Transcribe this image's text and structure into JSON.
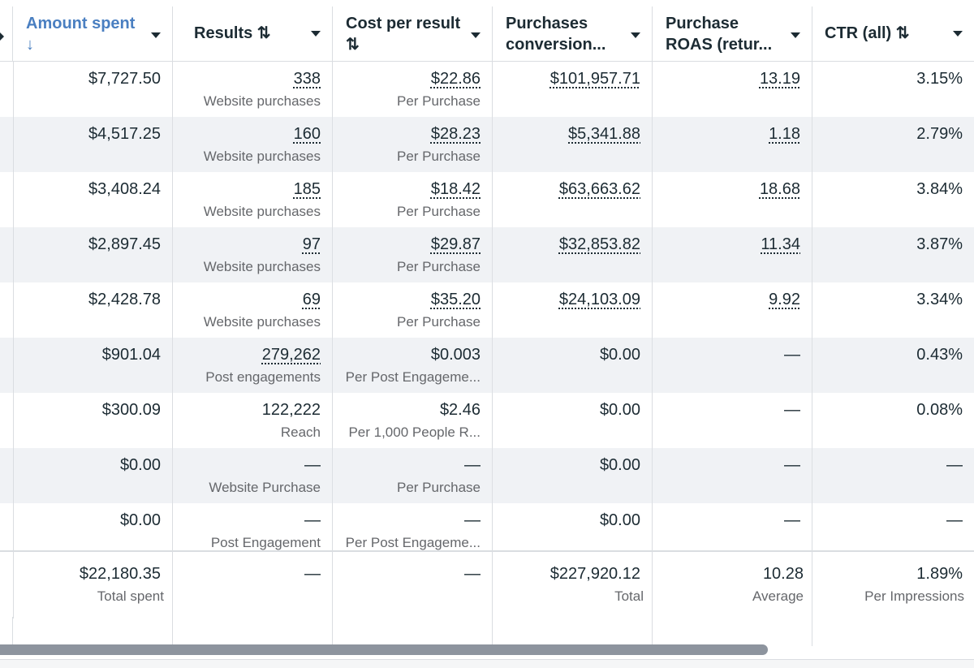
{
  "header": {
    "columns": [
      {
        "label": "Amount spent",
        "sort_glyph": "↓",
        "sorted": true
      },
      {
        "label": "Results ⇅",
        "sort_glyph": "",
        "sorted": false
      },
      {
        "label": "Cost per result",
        "sort_glyph": "⇅",
        "sorted": false
      },
      {
        "label": "Purchases",
        "label2": "conversion...",
        "sorted": false
      },
      {
        "label": "Purchase",
        "label2": "ROAS (retur...",
        "sorted": false
      },
      {
        "label": "CTR (all) ⇅",
        "sorted": false
      }
    ]
  },
  "rows": [
    {
      "amount": "$7,727.50",
      "results": "338",
      "results_sub": "Website purchases",
      "cpr": "$22.86",
      "cpr_sub": "Per Purchase",
      "conv": "$101,957.71",
      "roas": "13.19",
      "ctr": "3.15%"
    },
    {
      "amount": "$4,517.25",
      "results": "160",
      "results_sub": "Website purchases",
      "cpr": "$28.23",
      "cpr_sub": "Per Purchase",
      "conv": "$5,341.88",
      "roas": "1.18",
      "ctr": "2.79%"
    },
    {
      "amount": "$3,408.24",
      "results": "185",
      "results_sub": "Website purchases",
      "cpr": "$18.42",
      "cpr_sub": "Per Purchase",
      "conv": "$63,663.62",
      "roas": "18.68",
      "ctr": "3.84%"
    },
    {
      "amount": "$2,897.45",
      "results": "97",
      "results_sub": "Website purchases",
      "cpr": "$29.87",
      "cpr_sub": "Per Purchase",
      "conv": "$32,853.82",
      "roas": "11.34",
      "ctr": "3.87%"
    },
    {
      "amount": "$2,428.78",
      "results": "69",
      "results_sub": "Website purchases",
      "cpr": "$35.20",
      "cpr_sub": "Per Purchase",
      "conv": "$24,103.09",
      "roas": "9.92",
      "ctr": "3.34%"
    },
    {
      "amount": "$901.04",
      "results": "279,262",
      "results_sub": "Post engagements",
      "cpr": "$0.003",
      "cpr_sub": "Per Post Engageme...",
      "conv": "$0.00",
      "roas": "—",
      "ctr": "0.43%"
    },
    {
      "amount": "$300.09",
      "results": "122,222",
      "results_sub": "Reach",
      "cpr": "$2.46",
      "cpr_sub": "Per 1,000 People R...",
      "conv": "$0.00",
      "roas": "—",
      "ctr": "0.08%"
    },
    {
      "amount": "$0.00",
      "results": "—",
      "results_sub": "Website Purchase",
      "cpr": "—",
      "cpr_sub": "Per Purchase",
      "conv": "$0.00",
      "roas": "—",
      "ctr": "—"
    },
    {
      "amount": "$0.00",
      "results": "—",
      "results_sub": "Post Engagement",
      "cpr": "—",
      "cpr_sub": "Per Post Engageme...",
      "conv": "$0.00",
      "roas": "—",
      "ctr": "—"
    }
  ],
  "summary": {
    "amount": "$22,180.35",
    "amount_sub": "Total spent",
    "results": "—",
    "cpr": "—",
    "conv": "$227,920.12",
    "conv_sub": "Total",
    "roas": "10.28",
    "roas_sub": "Average",
    "ctr": "1.89%",
    "ctr_sub": "Per Impressions"
  },
  "colors": {
    "sorted_header": "#4a7fc1",
    "shaded_row": "#f0f2f5",
    "border": "#dadde1",
    "scroll_thumb": "#8d949e"
  }
}
